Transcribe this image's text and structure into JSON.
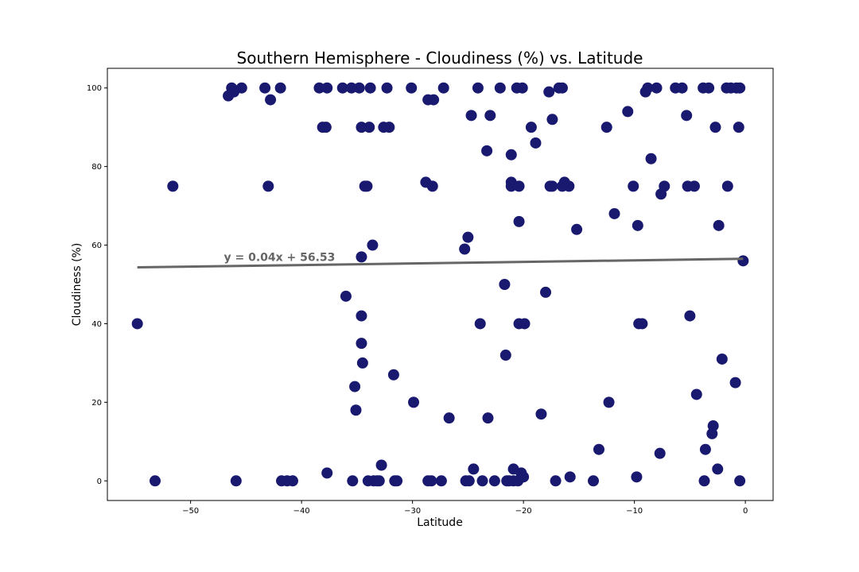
{
  "chart_data": {
    "type": "scatter",
    "title": "Southern Hemisphere - Cloudiness (%) vs. Latitude",
    "xlabel": "Latitude",
    "ylabel": "Cloudiness (%)",
    "xlim": [
      -57.5,
      2.5
    ],
    "ylim": [
      -5,
      105
    ],
    "xticks": [
      -50,
      -40,
      -30,
      -20,
      -10,
      0
    ],
    "yticks": [
      0,
      20,
      40,
      60,
      80,
      100
    ],
    "grid": false,
    "marker_color": "#191970",
    "line_color": "#666666",
    "regression": {
      "equation": "y = 0.04x + 56.53",
      "slope": 0.04,
      "intercept": 56.53,
      "x_range": [
        -54.8,
        -0.2
      ],
      "label_at": [
        -47,
        57
      ]
    },
    "points": [
      [
        -54.8,
        40
      ],
      [
        -53.2,
        0
      ],
      [
        -51.6,
        75
      ],
      [
        -46.6,
        98
      ],
      [
        -46.3,
        100
      ],
      [
        -46.1,
        99
      ],
      [
        -45.9,
        0
      ],
      [
        -45.4,
        100
      ],
      [
        -43.3,
        100
      ],
      [
        -43.0,
        75
      ],
      [
        -42.8,
        97
      ],
      [
        -41.9,
        100
      ],
      [
        -41.8,
        0
      ],
      [
        -41.3,
        0
      ],
      [
        -40.8,
        0
      ],
      [
        -38.4,
        100
      ],
      [
        -38.1,
        90
      ],
      [
        -37.8,
        90
      ],
      [
        -37.7,
        100
      ],
      [
        -37.7,
        2
      ],
      [
        -36.3,
        100
      ],
      [
        -36.0,
        47
      ],
      [
        -35.5,
        100
      ],
      [
        -35.4,
        0
      ],
      [
        -35.2,
        24
      ],
      [
        -35.1,
        18
      ],
      [
        -34.8,
        100
      ],
      [
        -34.6,
        90
      ],
      [
        -34.6,
        57
      ],
      [
        -34.6,
        42
      ],
      [
        -34.6,
        35
      ],
      [
        -34.5,
        30
      ],
      [
        -34.3,
        75
      ],
      [
        -34.1,
        75
      ],
      [
        -34.0,
        0
      ],
      [
        -33.9,
        90
      ],
      [
        -33.8,
        100
      ],
      [
        -33.6,
        60
      ],
      [
        -33.5,
        0
      ],
      [
        -33.2,
        0
      ],
      [
        -33.0,
        0
      ],
      [
        -32.8,
        4
      ],
      [
        -32.6,
        90
      ],
      [
        -32.3,
        100
      ],
      [
        -32.1,
        90
      ],
      [
        -31.7,
        27
      ],
      [
        -31.6,
        0
      ],
      [
        -31.4,
        0
      ],
      [
        -30.1,
        100
      ],
      [
        -29.9,
        20
      ],
      [
        -28.8,
        76
      ],
      [
        -28.6,
        97
      ],
      [
        -28.6,
        0
      ],
      [
        -28.3,
        0
      ],
      [
        -28.2,
        75
      ],
      [
        -28.1,
        97
      ],
      [
        -27.4,
        0
      ],
      [
        -27.2,
        100
      ],
      [
        -26.7,
        16
      ],
      [
        -25.3,
        59
      ],
      [
        -25.2,
        0
      ],
      [
        -25.0,
        62
      ],
      [
        -24.9,
        0
      ],
      [
        -24.7,
        93
      ],
      [
        -24.5,
        3
      ],
      [
        -24.1,
        100
      ],
      [
        -23.9,
        40
      ],
      [
        -23.7,
        0
      ],
      [
        -23.3,
        84
      ],
      [
        -23.2,
        16
      ],
      [
        -23.0,
        93
      ],
      [
        -22.6,
        0
      ],
      [
        -22.1,
        100
      ],
      [
        -21.7,
        50
      ],
      [
        -21.6,
        32
      ],
      [
        -21.5,
        0
      ],
      [
        -21.3,
        0
      ],
      [
        -21.1,
        83
      ],
      [
        -21.1,
        76
      ],
      [
        -21.1,
        75
      ],
      [
        -20.9,
        3
      ],
      [
        -20.9,
        0
      ],
      [
        -20.6,
        100
      ],
      [
        -20.5,
        0
      ],
      [
        -20.4,
        75
      ],
      [
        -20.4,
        66
      ],
      [
        -20.4,
        40
      ],
      [
        -20.2,
        2
      ],
      [
        -20.0,
        1
      ],
      [
        -20.1,
        100
      ],
      [
        -19.9,
        40
      ],
      [
        -19.3,
        90
      ],
      [
        -18.9,
        86
      ],
      [
        -18.4,
        17
      ],
      [
        -18.0,
        48
      ],
      [
        -17.7,
        99
      ],
      [
        -17.6,
        75
      ],
      [
        -17.4,
        92
      ],
      [
        -17.4,
        75
      ],
      [
        -17.1,
        0
      ],
      [
        -16.8,
        100
      ],
      [
        -16.5,
        75
      ],
      [
        -16.5,
        100
      ],
      [
        -16.3,
        76
      ],
      [
        -15.9,
        75
      ],
      [
        -15.8,
        1
      ],
      [
        -15.2,
        64
      ],
      [
        -13.7,
        0
      ],
      [
        -13.2,
        8
      ],
      [
        -12.5,
        90
      ],
      [
        -12.3,
        20
      ],
      [
        -11.8,
        68
      ],
      [
        -10.6,
        94
      ],
      [
        -10.1,
        75
      ],
      [
        -9.8,
        1
      ],
      [
        -9.7,
        65
      ],
      [
        -9.6,
        40
      ],
      [
        -9.3,
        40
      ],
      [
        -9.0,
        99
      ],
      [
        -8.8,
        100
      ],
      [
        -8.5,
        82
      ],
      [
        -8.0,
        100
      ],
      [
        -7.7,
        7
      ],
      [
        -7.6,
        73
      ],
      [
        -7.3,
        75
      ],
      [
        -6.3,
        100
      ],
      [
        -5.7,
        100
      ],
      [
        -5.3,
        93
      ],
      [
        -5.2,
        75
      ],
      [
        -5.0,
        42
      ],
      [
        -4.6,
        75
      ],
      [
        -4.4,
        22
      ],
      [
        -3.8,
        100
      ],
      [
        -3.7,
        0
      ],
      [
        -3.6,
        8
      ],
      [
        -3.3,
        100
      ],
      [
        -3.0,
        12
      ],
      [
        -2.9,
        14
      ],
      [
        -2.7,
        90
      ],
      [
        -2.5,
        3
      ],
      [
        -2.4,
        65
      ],
      [
        -2.1,
        31
      ],
      [
        -1.7,
        100
      ],
      [
        -1.6,
        75
      ],
      [
        -1.3,
        100
      ],
      [
        -0.9,
        25
      ],
      [
        -0.8,
        100
      ],
      [
        -0.6,
        90
      ],
      [
        -0.5,
        100
      ],
      [
        -0.5,
        0
      ],
      [
        -0.2,
        56
      ]
    ]
  }
}
